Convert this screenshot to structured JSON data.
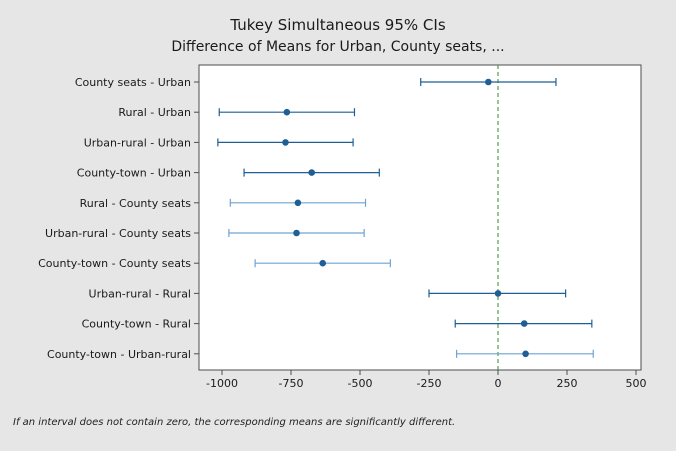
{
  "chart_data": {
    "type": "interval",
    "title": "Tukey Simultaneous 95% CIs",
    "subtitle": "Difference of Means for Urban, County seats, ...",
    "xlabel": "",
    "ylabel": "",
    "xlim": [
      -1100,
      500
    ],
    "xticks": [
      -1000,
      -750,
      -500,
      -250,
      0,
      250,
      500
    ],
    "xtick_labels": [
      "-1000",
      "-750",
      "-500",
      "-250",
      "0",
      "250",
      "500"
    ],
    "reference_line": 0,
    "comparisons": [
      {
        "label": "County seats - Urban",
        "mean": -35,
        "lower": -280,
        "upper": 210,
        "shade": "dark"
      },
      {
        "label": "Rural - Urban",
        "mean": -765,
        "lower": -1010,
        "upper": -520,
        "shade": "dark"
      },
      {
        "label": "Urban-rural  - Urban",
        "mean": -770,
        "lower": -1015,
        "upper": -525,
        "shade": "dark"
      },
      {
        "label": "County-town  - Urban",
        "mean": -675,
        "lower": -920,
        "upper": -430,
        "shade": "dark"
      },
      {
        "label": "Rural - County seats",
        "mean": -725,
        "lower": -970,
        "upper": -480,
        "shade": "light"
      },
      {
        "label": "Urban-rural  - County seats",
        "mean": -730,
        "lower": -975,
        "upper": -485,
        "shade": "light"
      },
      {
        "label": "County-town  - County seats",
        "mean": -635,
        "lower": -880,
        "upper": -390,
        "shade": "light"
      },
      {
        "label": "Urban-rural  - Rural",
        "mean": 0,
        "lower": -250,
        "upper": 245,
        "shade": "dark"
      },
      {
        "label": "County-town  - Rural",
        "mean": 95,
        "lower": -155,
        "upper": 340,
        "shade": "dark"
      },
      {
        "label": "County-town  - Urban-rural",
        "mean": 100,
        "lower": -150,
        "upper": 345,
        "shade": "light"
      }
    ],
    "colors": {
      "dark": "#1f5f96",
      "light": "#6fa3d3",
      "point": "#1f5f96",
      "reference": "#2e8b2e"
    },
    "footnote": "If an interval does not contain zero, the corresponding means are significantly different."
  }
}
